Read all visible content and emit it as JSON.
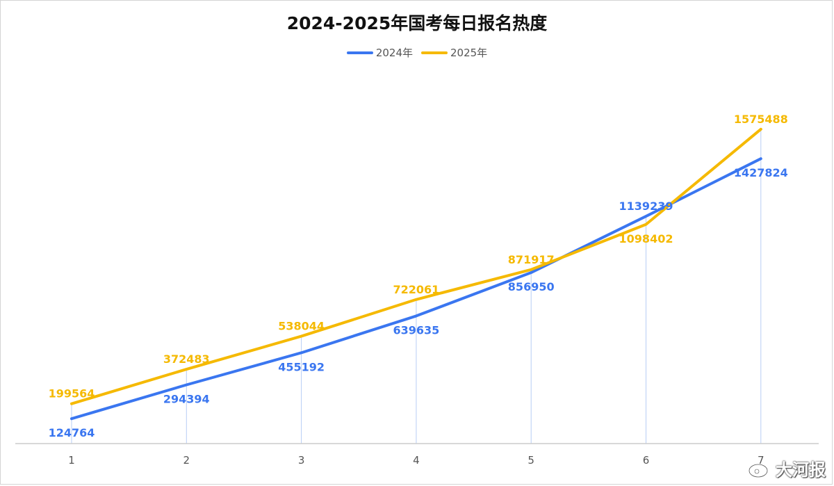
{
  "watermark": {
    "text": "大河报"
  },
  "chart_data": {
    "type": "line",
    "title": "2024-2025年国考每日报名热度",
    "xlabel": "",
    "ylabel": "",
    "categories": [
      "1",
      "2",
      "3",
      "4",
      "5",
      "6",
      "7"
    ],
    "ylim": [
      0,
      1700000
    ],
    "grid": false,
    "legend_position": "top-center",
    "series": [
      {
        "name": "2024年",
        "color": "#3a76f0",
        "values": [
          124764,
          294394,
          455192,
          639635,
          856950,
          1139239,
          1427824
        ]
      },
      {
        "name": "2025年",
        "color": "#f5b900",
        "values": [
          199564,
          372483,
          538044,
          722061,
          871917,
          1098402,
          1575488
        ]
      }
    ]
  }
}
